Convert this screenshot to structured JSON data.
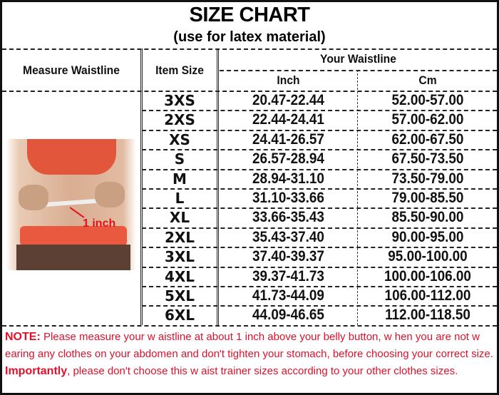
{
  "title": "SIZE CHART",
  "subtitle": "(use for latex material)",
  "headers": {
    "measure": "Measure Waistline",
    "item_size": "Item Size",
    "your_waistline": "Your Waistline",
    "inch": "Inch",
    "cm": "Cm"
  },
  "photo": {
    "annotation": "1 inch"
  },
  "rows": [
    {
      "size": "3XS",
      "inch": "20.47-22.44",
      "cm": "52.00-57.00"
    },
    {
      "size": "2XS",
      "inch": "22.44-24.41",
      "cm": "57.00-62.00"
    },
    {
      "size": "XS",
      "inch": "24.41-26.57",
      "cm": "62.00-67.50"
    },
    {
      "size": "S",
      "inch": "26.57-28.94",
      "cm": "67.50-73.50"
    },
    {
      "size": "M",
      "inch": "28.94-31.10",
      "cm": "73.50-79.00"
    },
    {
      "size": "L",
      "inch": "31.10-33.66",
      "cm": "79.00-85.50"
    },
    {
      "size": "XL",
      "inch": "33.66-35.43",
      "cm": "85.50-90.00"
    },
    {
      "size": "2XL",
      "inch": "35.43-37.40",
      "cm": "90.00-95.00"
    },
    {
      "size": "3XL",
      "inch": "37.40-39.37",
      "cm": "95.00-100.00"
    },
    {
      "size": "4XL",
      "inch": "39.37-41.73",
      "cm": "100.00-106.00"
    },
    {
      "size": "5XL",
      "inch": "41.73-44.09",
      "cm": "106.00-112.00"
    },
    {
      "size": "6XL",
      "inch": "44.09-46.65",
      "cm": "112.00-118.50"
    }
  ],
  "note": {
    "label": "NOTE:",
    "text1": " Please measure your w aistline at about 1 inch above your belly button, w hen you are not w earing any clothes on your abdomen and don't tighten your stomach, before choosing your correct size. ",
    "emphasis": "Importantly",
    "text2": ", please don't choose this w aist trainer sizes according to your other clothes sizes."
  },
  "colors": {
    "note_text": "#e0102a",
    "border": "#111111"
  }
}
